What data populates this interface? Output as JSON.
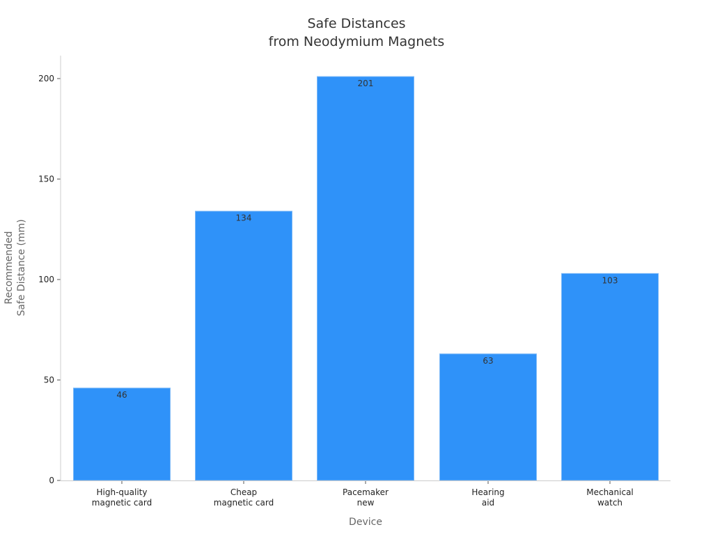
{
  "chart_data": {
    "type": "bar",
    "title": [
      "Safe Distances",
      "from Neodymium Magnets"
    ],
    "xlabel": "Device",
    "ylabel": [
      "Recommended",
      "Safe Distance (mm)"
    ],
    "categories": [
      [
        "High-quality",
        "magnetic card"
      ],
      [
        "Cheap",
        "magnetic card"
      ],
      [
        "Pacemaker",
        "new"
      ],
      [
        "Hearing",
        "aid"
      ],
      [
        "Mechanical",
        "watch"
      ]
    ],
    "values": [
      46,
      134,
      201,
      63,
      103
    ],
    "yticks": [
      0,
      50,
      100,
      150,
      200
    ],
    "ylim": [
      0,
      211
    ],
    "grid": false,
    "bar_color": "#2F92F9",
    "bar_edge_color": "#7DB9F7"
  }
}
